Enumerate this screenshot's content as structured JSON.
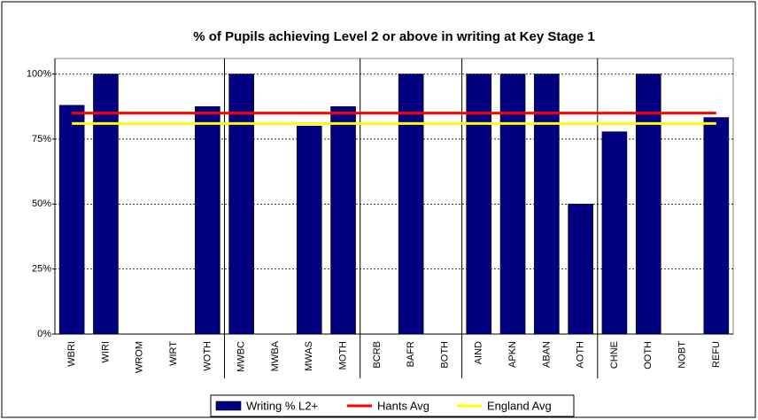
{
  "chart_data": {
    "type": "bar",
    "title": "% of Pupils achieving Level 2 or above in writing at Key Stage 1",
    "categories": [
      "WBRI",
      "WIRI",
      "WROM",
      "WIRT",
      "WOTH",
      "MWBC",
      "MWBA",
      "MWAS",
      "MOTH",
      "BCRB",
      "BAFR",
      "BOTH",
      "AIND",
      "APKN",
      "ABAN",
      "AOTH",
      "CHNE",
      "OOTH",
      "NOBT",
      "REFU"
    ],
    "series": [
      {
        "name": "Writing % L2+",
        "type": "bar",
        "color": "#000080",
        "values": [
          88,
          100,
          null,
          null,
          87.5,
          100,
          null,
          80,
          87.5,
          null,
          100,
          null,
          100,
          100,
          100,
          50,
          77.8,
          100,
          null,
          83.3
        ]
      },
      {
        "name": "Hants Avg",
        "type": "line",
        "color": "#ff0000",
        "values": [
          85,
          85,
          85,
          85,
          85,
          85,
          85,
          85,
          85,
          85,
          85,
          85,
          85,
          85,
          85,
          85,
          85,
          85,
          85,
          85
        ]
      },
      {
        "name": "England Avg",
        "type": "line",
        "color": "#ffff00",
        "values": [
          81,
          81,
          81,
          81,
          81,
          81,
          81,
          81,
          81,
          81,
          81,
          81,
          81,
          81,
          81,
          81,
          81,
          81,
          81,
          81
        ]
      }
    ],
    "ylim": [
      0,
      106
    ],
    "yticks": [
      {
        "value": 0,
        "label": "0%"
      },
      {
        "value": 25,
        "label": "25%"
      },
      {
        "value": 50,
        "label": "50%"
      },
      {
        "value": 75,
        "label": "75%"
      },
      {
        "value": 100,
        "label": "100%"
      }
    ],
    "grid": true,
    "legend": "bottom"
  }
}
